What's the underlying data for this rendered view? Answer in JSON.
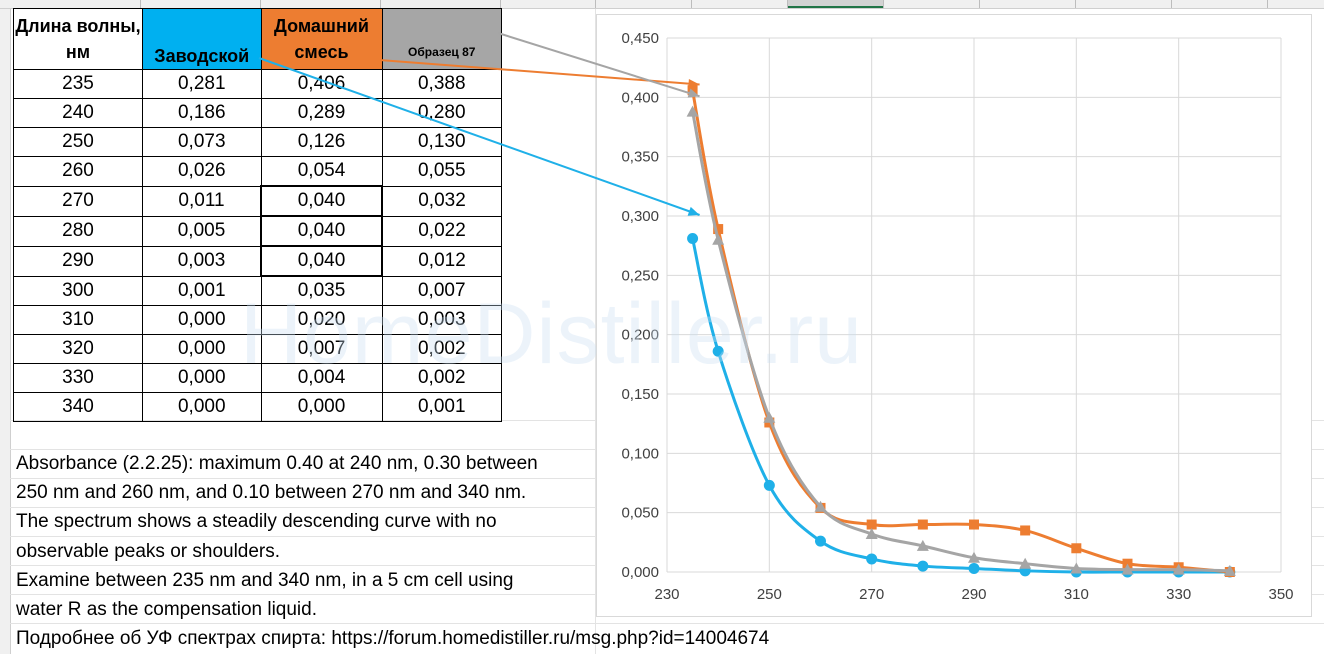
{
  "table": {
    "headers": [
      "Длина волны, нм",
      "Заводской",
      "Домашний смесь",
      "Образец 87"
    ],
    "rows": [
      [
        "235",
        "0,281",
        "0,406",
        "0,388"
      ],
      [
        "240",
        "0,186",
        "0,289",
        "0,280"
      ],
      [
        "250",
        "0,073",
        "0,126",
        "0,130"
      ],
      [
        "260",
        "0,026",
        "0,054",
        "0,055"
      ],
      [
        "270",
        "0,011",
        "0,040",
        "0,032"
      ],
      [
        "280",
        "0,005",
        "0,040",
        "0,022"
      ],
      [
        "290",
        "0,003",
        "0,040",
        "0,012"
      ],
      [
        "300",
        "0,001",
        "0,035",
        "0,007"
      ],
      [
        "310",
        "0,000",
        "0,020",
        "0,003"
      ],
      [
        "320",
        "0,000",
        "0,007",
        "0,002"
      ],
      [
        "330",
        "0,000",
        "0,004",
        "0,002"
      ],
      [
        "340",
        "0,000",
        "0,000",
        "0,001"
      ]
    ]
  },
  "notes": [
    "Absorbance (2.2.25): maximum 0.40 at 240 nm, 0.30 between",
    "250 nm and 260 nm, and 0.10 between 270 nm and 340 nm.",
    "The spectrum shows a steadily descending curve with no",
    "observable peaks or shoulders.",
    "Examine between 235 nm and 340 nm, in a 5 cm cell using",
    "water R as the compensation liquid.",
    "Подробнее об УФ спектрах спирта: https://forum.homedistiller.ru/msg.php?id=14004674"
  ],
  "watermark": "HomeDistiller.ru",
  "colors": {
    "zavodskoy": "#1fb0e8",
    "domashniy": "#ed7d31",
    "obrazets": "#a5a5a5"
  },
  "chart_data": {
    "type": "line",
    "x": [
      235,
      240,
      250,
      260,
      270,
      280,
      290,
      300,
      310,
      320,
      330,
      340
    ],
    "series": [
      {
        "name": "Заводской",
        "marker": "circle",
        "values": [
          0.281,
          0.186,
          0.073,
          0.026,
          0.011,
          0.005,
          0.003,
          0.001,
          0.0,
          0.0,
          0.0,
          0.0
        ]
      },
      {
        "name": "Домашний смесь",
        "marker": "square",
        "values": [
          0.406,
          0.289,
          0.126,
          0.054,
          0.04,
          0.04,
          0.04,
          0.035,
          0.02,
          0.007,
          0.004,
          0.0
        ]
      },
      {
        "name": "Образец 87",
        "marker": "triangle",
        "values": [
          0.388,
          0.28,
          0.13,
          0.055,
          0.032,
          0.022,
          0.012,
          0.007,
          0.003,
          0.002,
          0.002,
          0.001
        ]
      }
    ],
    "xlim": [
      230,
      350
    ],
    "ylim": [
      0,
      0.45
    ],
    "xticks": [
      "230",
      "250",
      "270",
      "290",
      "310",
      "330",
      "350"
    ],
    "yticks": [
      "0,000",
      "0,050",
      "0,100",
      "0,150",
      "0,200",
      "0,250",
      "0,300",
      "0,350",
      "0,400",
      "0,450"
    ],
    "grid": true,
    "annotation_arrows": [
      {
        "from": "Заводской",
        "to_x": 235,
        "to_y": 0.3
      },
      {
        "from": "Домашний смесь",
        "to_x": 235,
        "to_y": 0.41
      },
      {
        "from": "Образец 87",
        "to_x": 235,
        "to_y": 0.4
      }
    ]
  }
}
